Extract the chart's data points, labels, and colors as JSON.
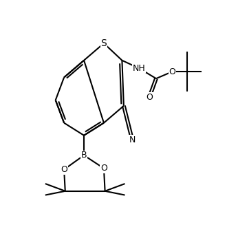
{
  "background_color": "#ffffff",
  "line_color": "#000000",
  "line_width": 1.5,
  "font_size": 9,
  "figsize": [
    3.3,
    3.3
  ],
  "dpi": 100,
  "xlim": [
    0,
    10
  ],
  "ylim": [
    -2,
    10
  ]
}
